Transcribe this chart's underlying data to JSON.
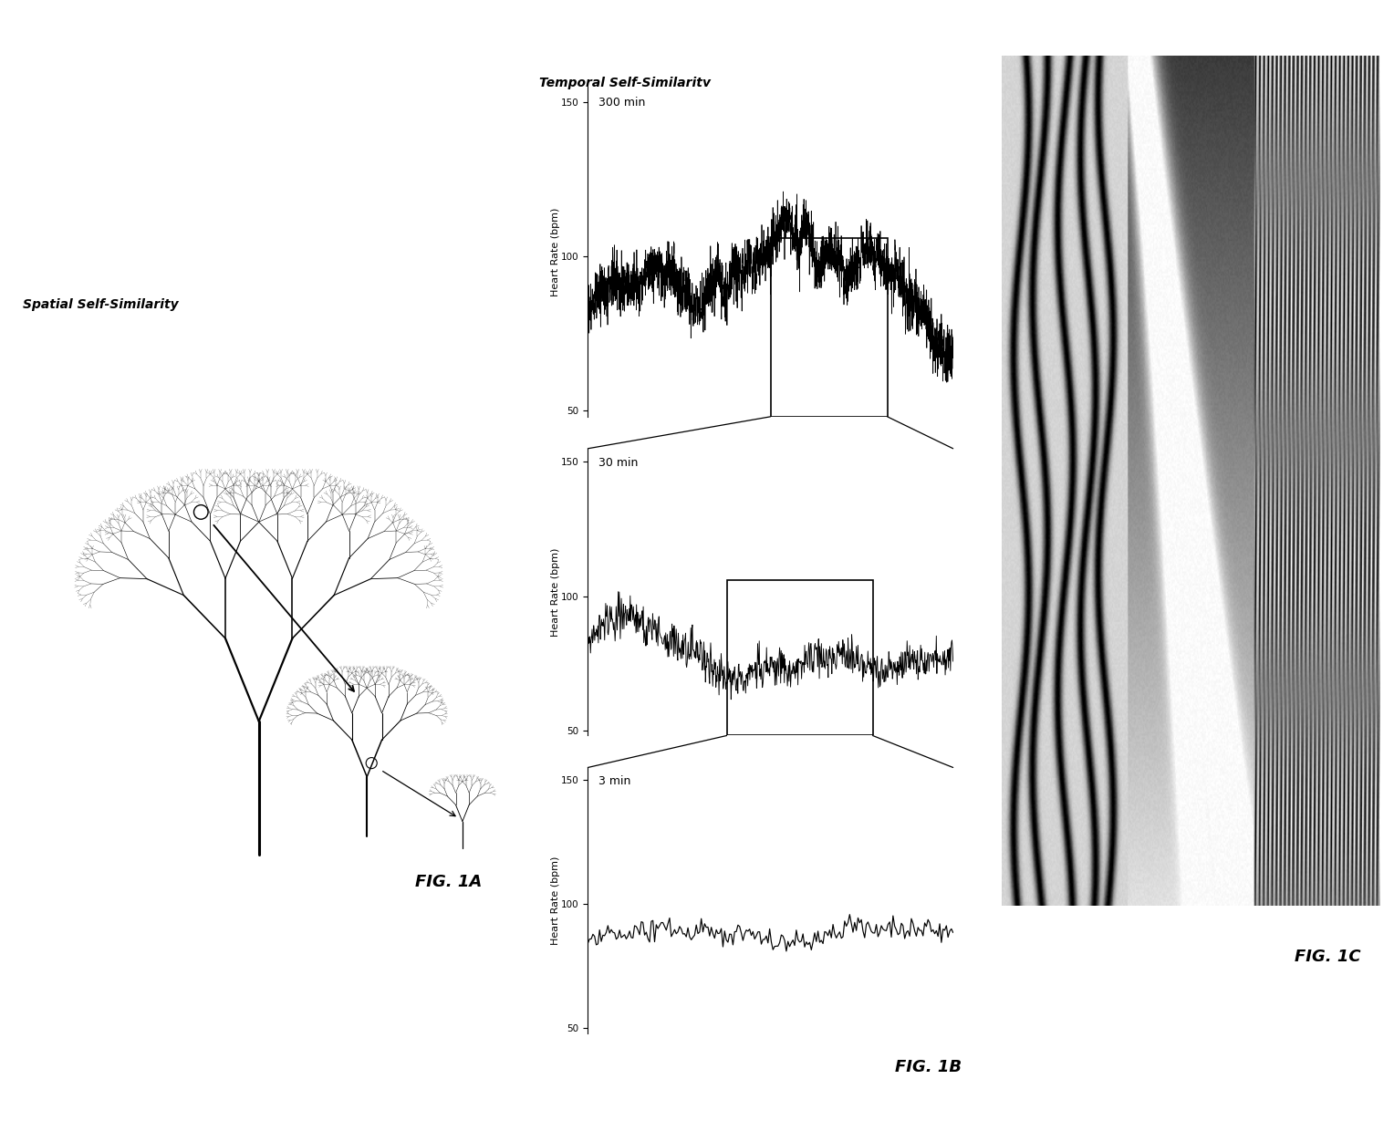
{
  "fig_width": 12.4,
  "fig_height": 15.28,
  "bg_color": "#ffffff",
  "fig1a_label": "FIG. 1A",
  "fig1b_label": "FIG. 1B",
  "fig1c_label": "FIG. 1C",
  "spatial_label": "Spatial Self-Similarity",
  "temporal_label": "Temporal Self-Similarity",
  "hr_label": "Heart Rate (bpm)",
  "time_300": "300 min",
  "time_30": "30 min",
  "time_3": "3 min",
  "hr_ticks": [
    150,
    100,
    50
  ],
  "hr_min": 50,
  "hr_max": 150,
  "tree_color": "#000000",
  "line_color": "#000000"
}
